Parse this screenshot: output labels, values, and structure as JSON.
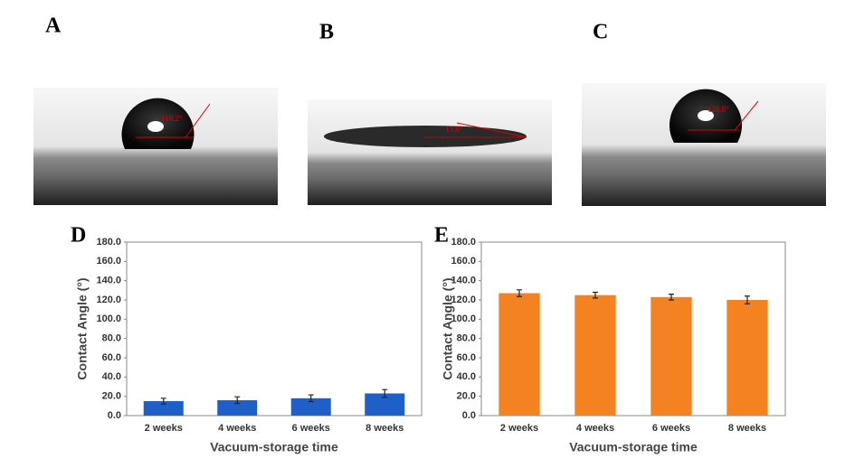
{
  "photos": [
    {
      "label": "A",
      "angle": "118.2°"
    },
    {
      "label": "B",
      "angle": "13.8°"
    },
    {
      "label": "C",
      "angle": "128.8°"
    }
  ],
  "chart_data": [
    {
      "type": "bar",
      "panel_label": "D",
      "xlabel": "Vacuum-storage time",
      "ylabel": "Contact Angle (°)",
      "categories": [
        "2 weeks",
        "4 weeks",
        "6 weeks",
        "8 weeks"
      ],
      "values": [
        15,
        16,
        18,
        23
      ],
      "errors": [
        3,
        3.5,
        3.5,
        4
      ],
      "color": "#1f5fc8",
      "ylim": [
        0,
        180
      ],
      "yticks": [
        {
          "value": 0,
          "label": "0.0"
        },
        {
          "value": 20,
          "label": "20.0"
        },
        {
          "value": 40,
          "label": "40.0"
        },
        {
          "value": 60,
          "label": "60.0"
        },
        {
          "value": 80,
          "label": "80.0"
        },
        {
          "value": 100,
          "label": "100.0"
        },
        {
          "value": 120,
          "label": "120.0"
        },
        {
          "value": 140,
          "label": "140.0"
        },
        {
          "value": 160,
          "label": "160.0"
        },
        {
          "value": 180,
          "label": "180.0"
        }
      ],
      "grid": false
    },
    {
      "type": "bar",
      "panel_label": "E",
      "xlabel": "Vacuum-storage time",
      "ylabel": "Contact Angle (°)",
      "categories": [
        "2 weeks",
        "4 weeks",
        "6 weeks",
        "8 weeks"
      ],
      "values": [
        127,
        125,
        123,
        120
      ],
      "errors": [
        3.5,
        3,
        3,
        4
      ],
      "color": "#f58220",
      "ylim": [
        0,
        180
      ],
      "yticks": [
        {
          "value": 0,
          "label": "0.0"
        },
        {
          "value": 20,
          "label": "20.0"
        },
        {
          "value": 40,
          "label": "40.0"
        },
        {
          "value": 60,
          "label": "60.0"
        },
        {
          "value": 80,
          "label": "80.0"
        },
        {
          "value": 100,
          "label": "100.0"
        },
        {
          "value": 120,
          "label": "120.0"
        },
        {
          "value": 140,
          "label": "140.0"
        },
        {
          "value": 160,
          "label": "160.0"
        },
        {
          "value": 180,
          "label": "180.0"
        }
      ],
      "grid": false
    }
  ]
}
